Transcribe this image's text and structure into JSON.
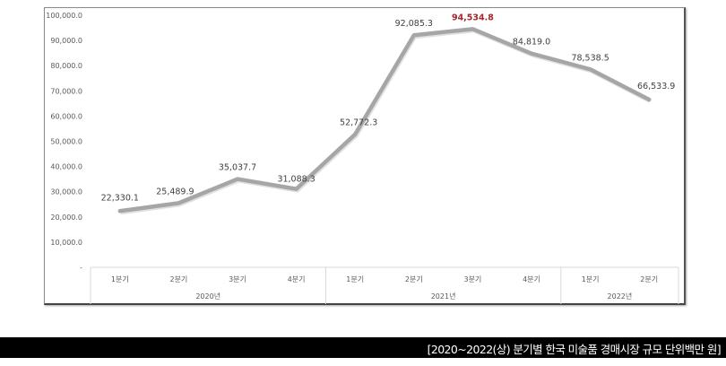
{
  "chart_data": {
    "type": "line",
    "title": "",
    "xlabel": "",
    "ylabel": "",
    "ylim": [
      0,
      100000
    ],
    "y_ticks": [
      "-",
      "10,000.0",
      "20,000.0",
      "30,000.0",
      "40,000.0",
      "50,000.0",
      "60,000.0",
      "70,000.0",
      "80,000.0",
      "90,000.0",
      "100,000.0"
    ],
    "categories": [
      "1분기",
      "2분기",
      "3분기",
      "4분기",
      "1분기",
      "2분기",
      "3분기",
      "4분기",
      "1분기",
      "2분기"
    ],
    "category_groups": [
      {
        "label": "2020년",
        "span": 4
      },
      {
        "label": "2021년",
        "span": 4
      },
      {
        "label": "2022년",
        "span": 2
      }
    ],
    "series": [
      {
        "name": "한국 미술품 경매시장 규모",
        "color": "#a6a6a6",
        "values": [
          22330.1,
          25489.9,
          35037.7,
          31088.3,
          52772.3,
          92085.3,
          94534.8,
          84819.0,
          78538.5,
          66533.9
        ],
        "labels": [
          "22,330.1",
          "25,489.9",
          "35,037.7",
          "31,088.3",
          "52,772.3",
          "92,085.3",
          "94,534.8",
          "84,819.0",
          "78,538.5",
          "66,533.9"
        ]
      }
    ],
    "highlight": {
      "index": 6,
      "color": "#a5262c"
    },
    "grid": false,
    "legend": "none"
  },
  "caption": "[2020~2022(상) 분기별 한국 미술품 경매시장 규모 단위백만 원]"
}
